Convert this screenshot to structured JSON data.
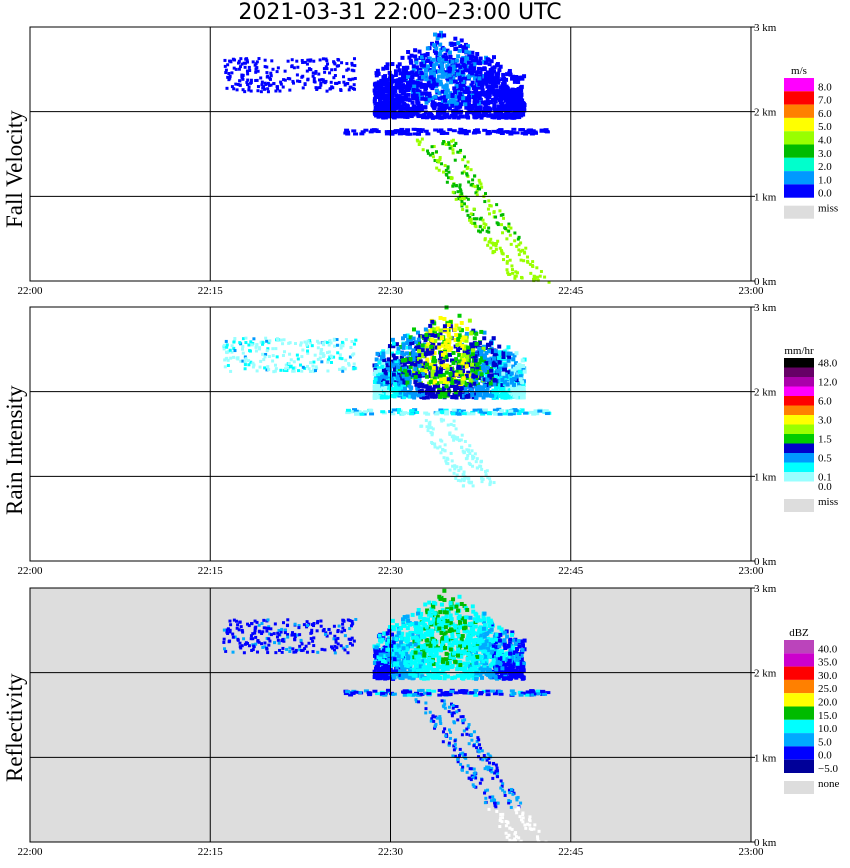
{
  "title": "2021-03-31   22:00–23:00 UTC",
  "chart_data": [
    {
      "type": "heatmap",
      "panel": "Fall Velocity",
      "x_ticks": [
        "22:00",
        "22:15",
        "22:30",
        "22:45",
        "23:00"
      ],
      "y_ticks": [
        "0 km",
        "1 km",
        "2 km",
        "3 km"
      ],
      "ylim_km": [
        0,
        3.0
      ],
      "xlim_min": [
        0,
        60
      ],
      "background": "#ffffff",
      "legend_title": "m/s",
      "legend": [
        {
          "label": "8.0",
          "color": "#ff00ff"
        },
        {
          "label": "7.0",
          "color": "#ff0000"
        },
        {
          "label": "6.0",
          "color": "#ff8000"
        },
        {
          "label": "5.0",
          "color": "#ffff00"
        },
        {
          "label": "4.0",
          "color": "#99ff00"
        },
        {
          "label": "3.0",
          "color": "#00bb00"
        },
        {
          "label": "2.0",
          "color": "#00ffcc"
        },
        {
          "label": "1.0",
          "color": "#0099ff"
        },
        {
          "label": "0.0",
          "color": "#0000ff"
        }
      ],
      "miss_label": "miss",
      "miss_color": "#dddddd"
    },
    {
      "type": "heatmap",
      "panel": "Rain Intensity",
      "x_ticks": [
        "22:00",
        "22:15",
        "22:30",
        "22:45",
        "23:00"
      ],
      "y_ticks": [
        "0 km",
        "1 km",
        "2 km",
        "3 km"
      ],
      "ylim_km": [
        0,
        3.0
      ],
      "xlim_min": [
        0,
        60
      ],
      "background": "#ffffff",
      "legend_title": "mm/hr",
      "legend": [
        {
          "label": "48.0",
          "color": "#000000"
        },
        {
          "label": "",
          "color": "#660066"
        },
        {
          "label": "12.0",
          "color": "#aa00aa"
        },
        {
          "label": "",
          "color": "#ff00ff"
        },
        {
          "label": "6.0",
          "color": "#ff0000"
        },
        {
          "label": "",
          "color": "#ff8000"
        },
        {
          "label": "3.0",
          "color": "#ffff00"
        },
        {
          "label": "",
          "color": "#99ff00"
        },
        {
          "label": "1.5",
          "color": "#00cc00"
        },
        {
          "label": "",
          "color": "#0000cc"
        },
        {
          "label": "0.5",
          "color": "#0099ff"
        },
        {
          "label": "",
          "color": "#00ffff"
        },
        {
          "label": "0.1",
          "color": "#99ffff"
        },
        {
          "label": "0.0",
          "color": "#ffffff"
        }
      ],
      "miss_label": "miss",
      "miss_color": "#dddddd"
    },
    {
      "type": "heatmap",
      "panel": "Reflectivity",
      "x_ticks": [
        "22:00",
        "22:15",
        "22:30",
        "22:45",
        "23:00"
      ],
      "y_ticks": [
        "0 km",
        "1 km",
        "2 km",
        "3 km"
      ],
      "ylim_km": [
        0,
        3.0
      ],
      "xlim_min": [
        0,
        60
      ],
      "background": "#dddddd",
      "legend_title": "dBZ",
      "legend": [
        {
          "label": "40.0",
          "color": "#bb44bb"
        },
        {
          "label": "35.0",
          "color": "#cc00cc"
        },
        {
          "label": "30.0",
          "color": "#ff0000"
        },
        {
          "label": "25.0",
          "color": "#ff8000"
        },
        {
          "label": "20.0",
          "color": "#ffff00"
        },
        {
          "label": "15.0",
          "color": "#00bb00"
        },
        {
          "label": "10.0",
          "color": "#00ffff"
        },
        {
          "label": "5.0",
          "color": "#00aaff"
        },
        {
          "label": "0.0",
          "color": "#0000ff"
        },
        {
          "label": "−5.0",
          "color": "#000099"
        }
      ],
      "miss_label": "none",
      "miss_color": "#dddddd"
    }
  ]
}
